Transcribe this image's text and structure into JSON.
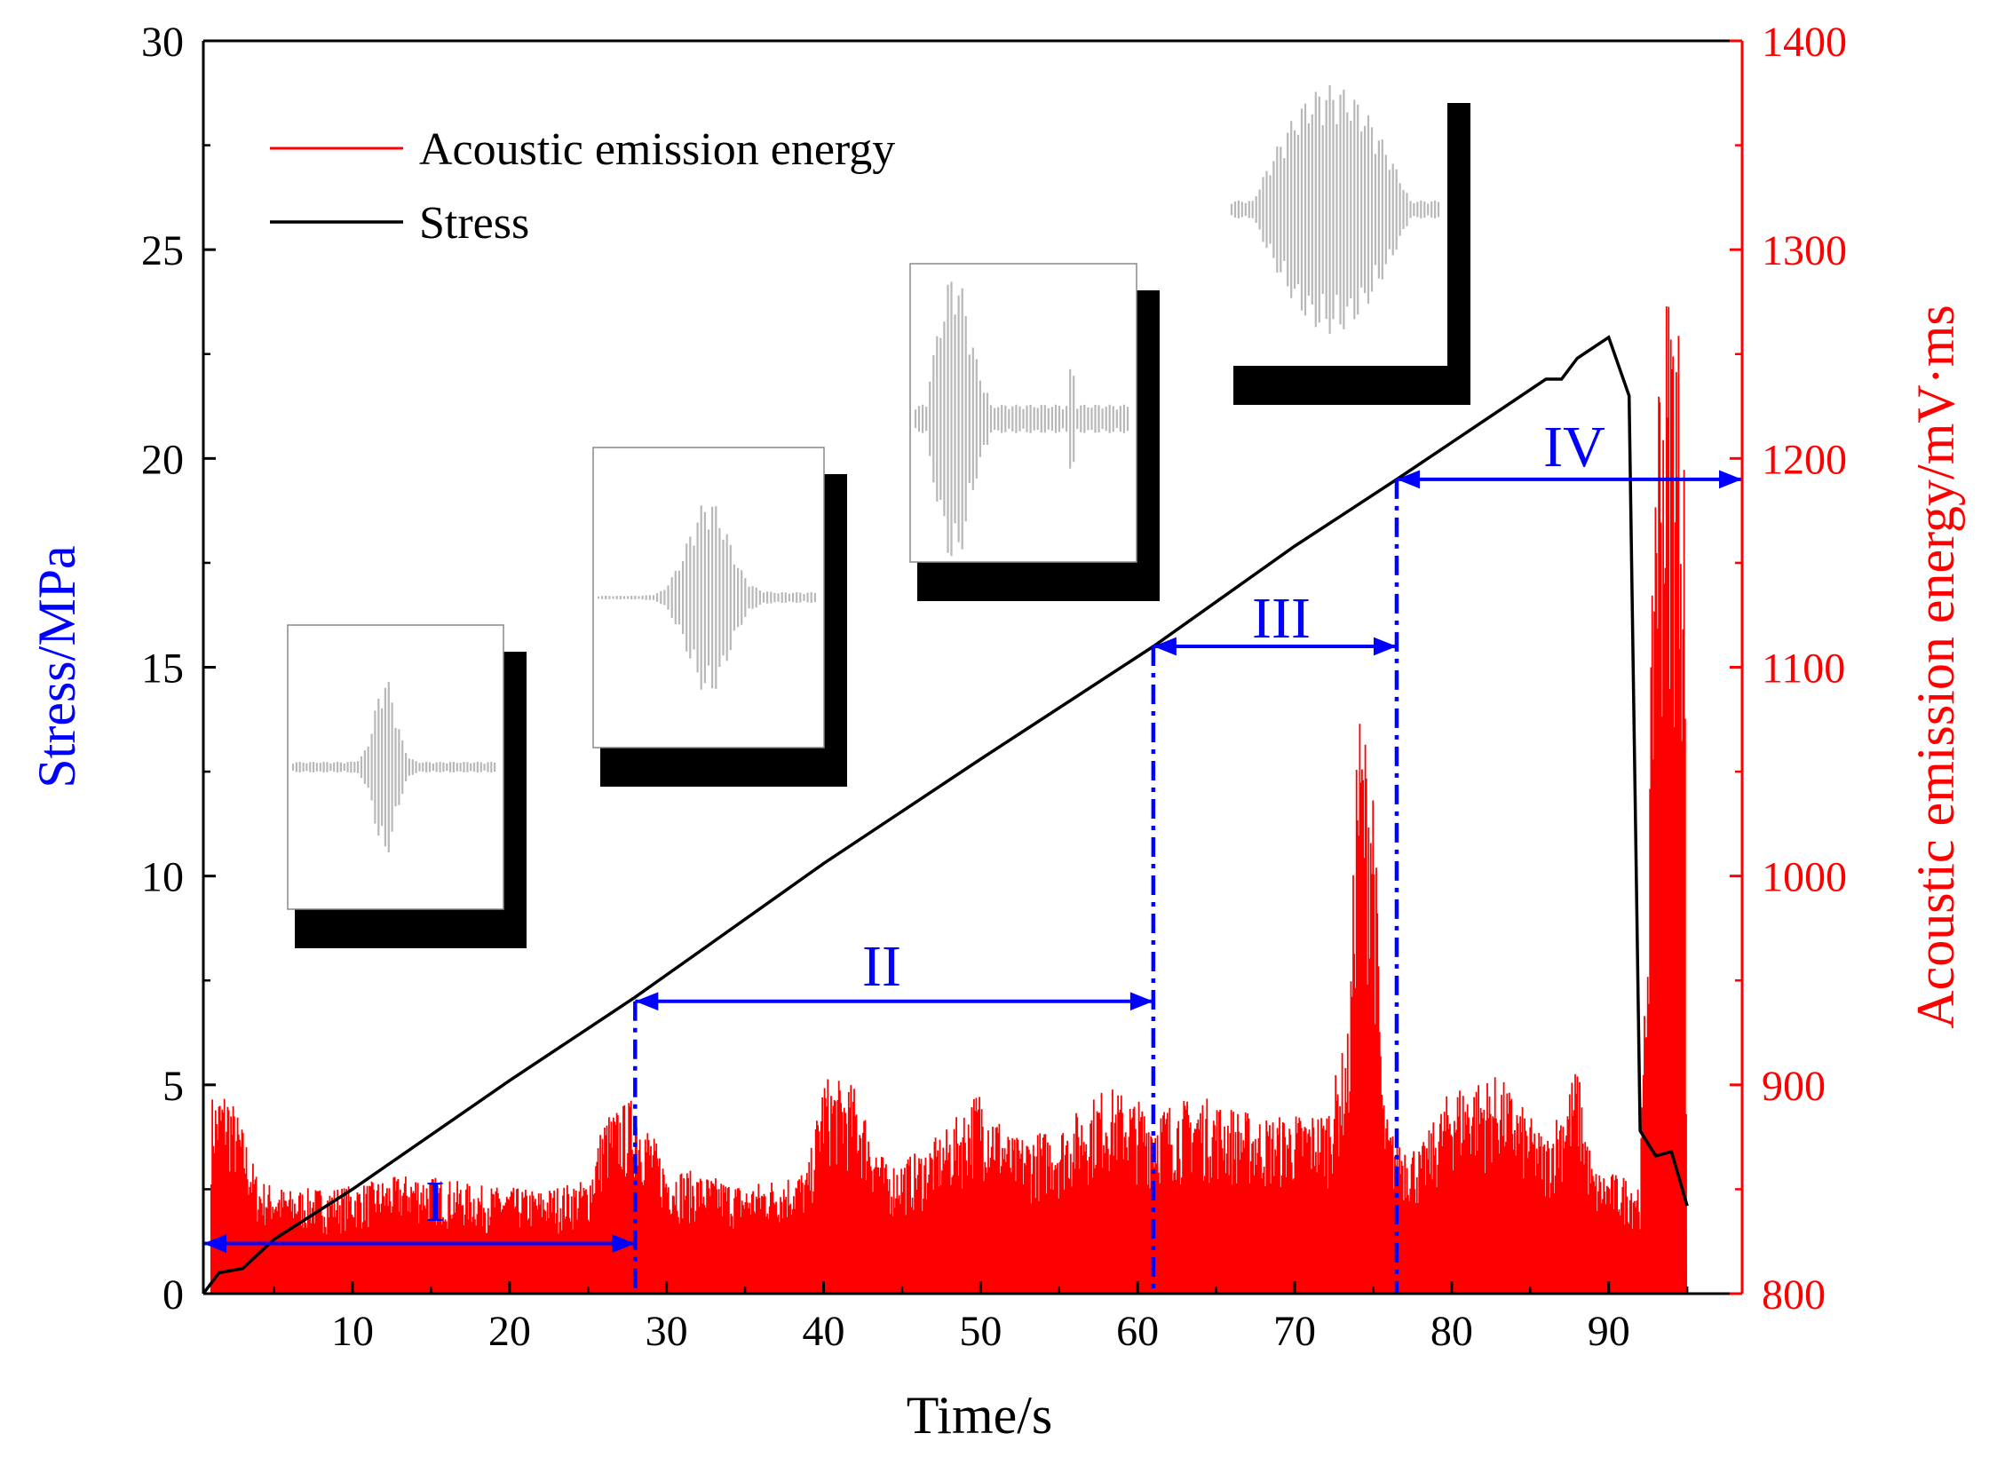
{
  "chart_data": {
    "type": "line",
    "xlabel": "Time/s",
    "ylabel_left": "Stress/MPa",
    "ylabel_right": "Acoustic emission energy/mV·ms",
    "xlim": [
      0.5,
      98.5
    ],
    "ylim_left": [
      0,
      30
    ],
    "ylim_right": [
      800,
      1400
    ],
    "x_ticks": [
      10,
      20,
      30,
      40,
      50,
      60,
      70,
      80,
      90
    ],
    "y_left_ticks": [
      0,
      5,
      10,
      15,
      20,
      25,
      30
    ],
    "y_right_ticks": [
      800,
      900,
      1000,
      1100,
      1200,
      1300,
      1400
    ],
    "colors": {
      "stress": "#000000",
      "energy": "#ff0000",
      "phase": "#0000ff",
      "left_axis_title": "#0000ff"
    },
    "legend": [
      {
        "label": "Acoustic emission energy",
        "color": "#ff0000"
      },
      {
        "label": "Stress",
        "color": "#000000"
      }
    ],
    "series": [
      {
        "name": "Stress",
        "axis": "left",
        "x": [
          0.5,
          1.5,
          3,
          5,
          10,
          20,
          28,
          40,
          50,
          61,
          70,
          76.5,
          86,
          87,
          88,
          90,
          91.3,
          92,
          93,
          94,
          95
        ],
        "y": [
          0,
          0.5,
          0.6,
          1.3,
          2.5,
          5.1,
          7.1,
          10.3,
          12.8,
          15.5,
          17.9,
          19.5,
          21.9,
          21.9,
          22.4,
          22.9,
          21.5,
          3.9,
          3.3,
          3.4,
          2.1
        ]
      },
      {
        "name": "Acoustic emission energy",
        "axis": "right",
        "envelope": [
          [
            1,
            895
          ],
          [
            2,
            900
          ],
          [
            3,
            880
          ],
          [
            4,
            855
          ],
          [
            6,
            850
          ],
          [
            10,
            852
          ],
          [
            14,
            858
          ],
          [
            18,
            852
          ],
          [
            22,
            850
          ],
          [
            25,
            855
          ],
          [
            26,
            885
          ],
          [
            28,
            895
          ],
          [
            30,
            862
          ],
          [
            35,
            852
          ],
          [
            39,
            860
          ],
          [
            40,
            905
          ],
          [
            42,
            900
          ],
          [
            44,
            862
          ],
          [
            46,
            868
          ],
          [
            48,
            880
          ],
          [
            50,
            900
          ],
          [
            52,
            875
          ],
          [
            55,
            880
          ],
          [
            58,
            900
          ],
          [
            61,
            890
          ],
          [
            64,
            895
          ],
          [
            68,
            885
          ],
          [
            72,
            888
          ],
          [
            73.5,
            930
          ],
          [
            74,
            1085
          ],
          [
            75,
            1060
          ],
          [
            75.6,
            900
          ],
          [
            76,
            880
          ],
          [
            78,
            870
          ],
          [
            80,
            900
          ],
          [
            83,
            905
          ],
          [
            86,
            875
          ],
          [
            88,
            910
          ],
          [
            89,
            860
          ],
          [
            92,
            855
          ],
          [
            92.5,
            1000
          ],
          [
            93,
            1250
          ],
          [
            94,
            1300
          ],
          [
            94.8,
            1250
          ],
          [
            95,
            800
          ]
        ]
      }
    ],
    "phases": [
      {
        "label": "I",
        "x_start": 0.5,
        "x_end": 28,
        "stress_level": 1.2
      },
      {
        "label": "II",
        "x_start": 28,
        "x_end": 61,
        "stress_level": 7
      },
      {
        "label": "III",
        "x_start": 61,
        "x_end": 76.5,
        "stress_level": 15.5
      },
      {
        "label": "IV",
        "x_start": 76.5,
        "x_end": 98.5,
        "stress_level": 19.5
      }
    ],
    "inset_waveforms": 4
  }
}
